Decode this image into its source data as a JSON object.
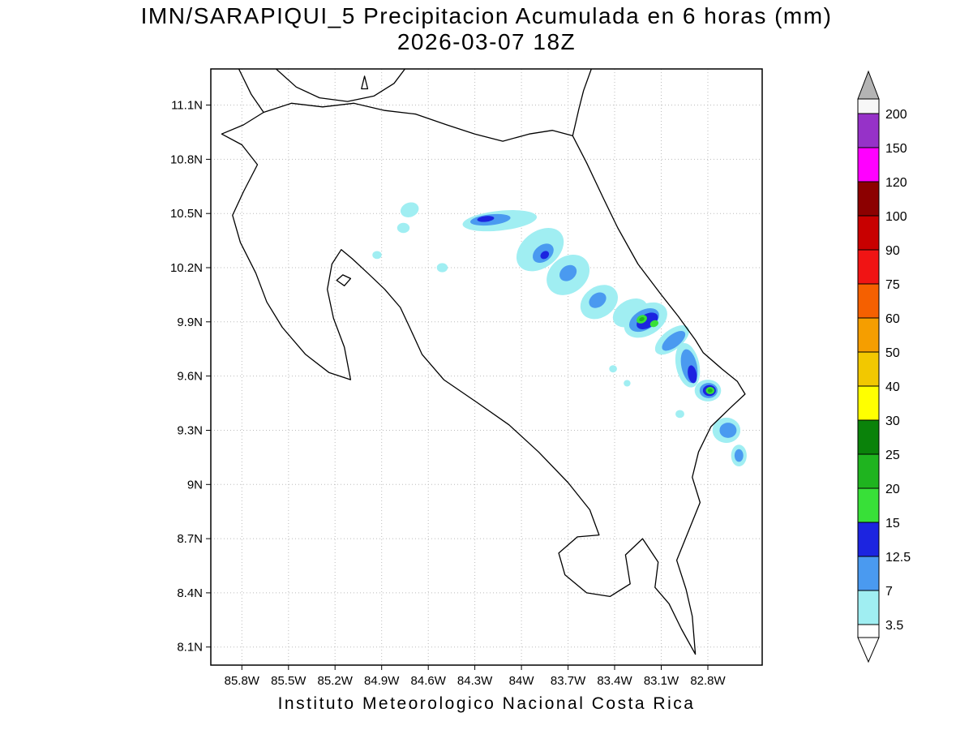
{
  "title": {
    "line1": "IMN/SARAPIQUI_5 Precipitacion Acumulada en 6 horas (mm)",
    "line2": "2026-03-07 18Z"
  },
  "footer": "Instituto Meteorologico Nacional Costa Rica",
  "chart_data": {
    "type": "heatmap",
    "title": "IMN/SARAPIQUI_5 Precipitacion Acumulada en 6 horas (mm)",
    "subtitle": "2026-03-07 18Z",
    "units": "mm",
    "region": "Costa Rica",
    "grid": "dotted",
    "lon_range_w": [
      86.0,
      82.45
    ],
    "lat_range": [
      8.0,
      11.3
    ],
    "lat_ticks": [
      {
        "v": 11.1,
        "label": "11.1N"
      },
      {
        "v": 10.8,
        "label": "10.8N"
      },
      {
        "v": 10.5,
        "label": "10.5N"
      },
      {
        "v": 10.2,
        "label": "10.2N"
      },
      {
        "v": 9.9,
        "label": "9.9N"
      },
      {
        "v": 9.6,
        "label": "9.6N"
      },
      {
        "v": 9.3,
        "label": "9.3N"
      },
      {
        "v": 9.0,
        "label": "9N"
      },
      {
        "v": 8.7,
        "label": "8.7N"
      },
      {
        "v": 8.4,
        "label": "8.4N"
      },
      {
        "v": 8.1,
        "label": "8.1N"
      }
    ],
    "lon_ticks": [
      {
        "v": 85.8,
        "label": "85.8W"
      },
      {
        "v": 85.5,
        "label": "85.5W"
      },
      {
        "v": 85.2,
        "label": "85.2W"
      },
      {
        "v": 84.9,
        "label": "84.9W"
      },
      {
        "v": 84.6,
        "label": "84.6W"
      },
      {
        "v": 84.3,
        "label": "84.3W"
      },
      {
        "v": 84.0,
        "label": "84W"
      },
      {
        "v": 83.7,
        "label": "83.7W"
      },
      {
        "v": 83.4,
        "label": "83.4W"
      },
      {
        "v": 83.1,
        "label": "83.1W"
      },
      {
        "v": 82.8,
        "label": "82.8W"
      }
    ],
    "colorbar": {
      "labels": [
        "200",
        "150",
        "120",
        "100",
        "90",
        "75",
        "60",
        "50",
        "40",
        "30",
        "25",
        "20",
        "15",
        "12.5",
        "7",
        "3.5"
      ],
      "cell_colors_top_to_bottom": [
        "#9632c8",
        "#ff00ff",
        "#8c0000",
        "#c80000",
        "#f01414",
        "#f56000",
        "#f59e00",
        "#f2c800",
        "#ffff00",
        "#0a820a",
        "#1fb41f",
        "#38e038",
        "#1c24e0",
        "#4a9af0",
        "#a0eef2"
      ],
      "above_max_color": "#f7f7f7",
      "top_arrow_color": "#b4b4b4",
      "below_min_color": "#ffffff"
    },
    "palette": {
      "3.5": "#a0eef2",
      "7": "#4a9af0",
      "12.5": "#1c24e0",
      "15": "#38e038",
      "20": "#1fb41f",
      "25": "#0a820a"
    },
    "blobs": [
      {
        "lon": 84.72,
        "lat": 10.52,
        "rx": 0.06,
        "ry": 0.04,
        "rot": -20,
        "level": "3.5"
      },
      {
        "lon": 84.76,
        "lat": 10.42,
        "rx": 0.04,
        "ry": 0.028,
        "rot": 0,
        "level": "3.5"
      },
      {
        "lon": 84.93,
        "lat": 10.27,
        "rx": 0.03,
        "ry": 0.022,
        "rot": 0,
        "level": "3.5"
      },
      {
        "lon": 84.51,
        "lat": 10.2,
        "rx": 0.035,
        "ry": 0.025,
        "rot": 0,
        "level": "3.5"
      },
      {
        "lon": 84.14,
        "lat": 10.46,
        "rx": 0.24,
        "ry": 0.055,
        "rot": -6,
        "level": "3.5"
      },
      {
        "lon": 83.88,
        "lat": 10.3,
        "rx": 0.17,
        "ry": 0.1,
        "rot": -38,
        "level": "3.5"
      },
      {
        "lon": 83.7,
        "lat": 10.16,
        "rx": 0.15,
        "ry": 0.1,
        "rot": -38,
        "level": "3.5"
      },
      {
        "lon": 83.5,
        "lat": 10.01,
        "rx": 0.13,
        "ry": 0.085,
        "rot": -35,
        "level": "3.5"
      },
      {
        "lon": 83.3,
        "lat": 9.95,
        "rx": 0.12,
        "ry": 0.07,
        "rot": -30,
        "level": "3.5"
      },
      {
        "lon": 83.2,
        "lat": 9.91,
        "rx": 0.15,
        "ry": 0.085,
        "rot": -30,
        "level": "3.5"
      },
      {
        "lon": 83.03,
        "lat": 9.8,
        "rx": 0.13,
        "ry": 0.055,
        "rot": -38,
        "level": "3.5"
      },
      {
        "lon": 82.93,
        "lat": 9.66,
        "rx": 0.075,
        "ry": 0.125,
        "rot": -12,
        "level": "3.5"
      },
      {
        "lon": 82.8,
        "lat": 9.52,
        "rx": 0.085,
        "ry": 0.06,
        "rot": 0,
        "level": "3.5"
      },
      {
        "lon": 82.68,
        "lat": 9.3,
        "rx": 0.09,
        "ry": 0.07,
        "rot": 0,
        "level": "3.5"
      },
      {
        "lon": 82.6,
        "lat": 9.16,
        "rx": 0.05,
        "ry": 0.06,
        "rot": 0,
        "level": "3.5"
      },
      {
        "lon": 83.41,
        "lat": 9.64,
        "rx": 0.025,
        "ry": 0.02,
        "rot": 0,
        "level": "3.5"
      },
      {
        "lon": 83.32,
        "lat": 9.56,
        "rx": 0.022,
        "ry": 0.018,
        "rot": 0,
        "level": "3.5"
      },
      {
        "lon": 82.98,
        "lat": 9.39,
        "rx": 0.028,
        "ry": 0.022,
        "rot": 0,
        "level": "3.5"
      },
      {
        "lon": 84.2,
        "lat": 10.465,
        "rx": 0.13,
        "ry": 0.03,
        "rot": -6,
        "level": "7"
      },
      {
        "lon": 83.86,
        "lat": 10.28,
        "rx": 0.075,
        "ry": 0.045,
        "rot": -38,
        "level": "7"
      },
      {
        "lon": 83.7,
        "lat": 10.17,
        "rx": 0.06,
        "ry": 0.04,
        "rot": -38,
        "level": "7"
      },
      {
        "lon": 83.51,
        "lat": 10.02,
        "rx": 0.06,
        "ry": 0.038,
        "rot": -35,
        "level": "7"
      },
      {
        "lon": 83.21,
        "lat": 9.91,
        "rx": 0.105,
        "ry": 0.055,
        "rot": -30,
        "level": "7"
      },
      {
        "lon": 83.02,
        "lat": 9.795,
        "rx": 0.09,
        "ry": 0.035,
        "rot": -38,
        "level": "7"
      },
      {
        "lon": 82.92,
        "lat": 9.655,
        "rx": 0.05,
        "ry": 0.095,
        "rot": -12,
        "level": "7"
      },
      {
        "lon": 82.795,
        "lat": 9.52,
        "rx": 0.058,
        "ry": 0.042,
        "rot": 0,
        "level": "7"
      },
      {
        "lon": 82.67,
        "lat": 9.3,
        "rx": 0.055,
        "ry": 0.042,
        "rot": 0,
        "level": "7"
      },
      {
        "lon": 82.6,
        "lat": 9.16,
        "rx": 0.028,
        "ry": 0.035,
        "rot": 0,
        "level": "7"
      },
      {
        "lon": 84.23,
        "lat": 10.47,
        "rx": 0.055,
        "ry": 0.016,
        "rot": -6,
        "level": "12.5"
      },
      {
        "lon": 83.85,
        "lat": 10.27,
        "rx": 0.03,
        "ry": 0.02,
        "rot": -38,
        "level": "12.5"
      },
      {
        "lon": 83.19,
        "lat": 9.905,
        "rx": 0.075,
        "ry": 0.038,
        "rot": -30,
        "level": "12.5"
      },
      {
        "lon": 82.9,
        "lat": 9.61,
        "rx": 0.028,
        "ry": 0.05,
        "rot": -10,
        "level": "12.5"
      },
      {
        "lon": 82.79,
        "lat": 9.52,
        "rx": 0.042,
        "ry": 0.03,
        "rot": 0,
        "level": "12.5"
      },
      {
        "lon": 83.225,
        "lat": 9.915,
        "rx": 0.035,
        "ry": 0.022,
        "rot": -25,
        "level": "15"
      },
      {
        "lon": 83.145,
        "lat": 9.89,
        "rx": 0.028,
        "ry": 0.018,
        "rot": -25,
        "level": "15"
      },
      {
        "lon": 83.225,
        "lat": 9.915,
        "rx": 0.018,
        "ry": 0.011,
        "rot": -25,
        "level": "20"
      },
      {
        "lon": 82.785,
        "lat": 9.52,
        "rx": 0.028,
        "ry": 0.02,
        "rot": 0,
        "level": "15"
      },
      {
        "lon": 82.785,
        "lat": 9.52,
        "rx": 0.015,
        "ry": 0.011,
        "rot": 0,
        "level": "20"
      }
    ],
    "coastlines": [
      [
        [
          85.82,
          11.3
        ],
        [
          85.74,
          11.16
        ],
        [
          85.66,
          11.06
        ]
      ],
      [
        [
          85.66,
          11.06
        ],
        [
          85.48,
          11.11
        ],
        [
          85.28,
          11.09
        ],
        [
          85.08,
          11.11
        ],
        [
          84.88,
          11.07
        ],
        [
          84.68,
          11.05
        ],
        [
          84.48,
          10.99
        ],
        [
          84.3,
          10.94
        ],
        [
          84.12,
          10.9
        ],
        [
          83.95,
          10.94
        ],
        [
          83.8,
          10.96
        ],
        [
          83.67,
          10.93
        ]
      ],
      [
        [
          83.67,
          10.93
        ],
        [
          83.63,
          11.08
        ],
        [
          83.6,
          11.18
        ],
        [
          83.55,
          11.3
        ]
      ],
      [
        [
          83.67,
          10.93
        ],
        [
          83.58,
          10.78
        ],
        [
          83.47,
          10.58
        ],
        [
          83.38,
          10.42
        ],
        [
          83.25,
          10.22
        ],
        [
          83.1,
          10.05
        ],
        [
          82.99,
          9.93
        ],
        [
          82.88,
          9.8
        ],
        [
          82.83,
          9.73
        ],
        [
          82.71,
          9.64
        ],
        [
          82.61,
          9.57
        ],
        [
          82.56,
          9.5
        ],
        [
          82.66,
          9.42
        ],
        [
          82.78,
          9.32
        ],
        [
          82.86,
          9.18
        ],
        [
          82.9,
          9.04
        ],
        [
          82.85,
          8.9
        ],
        [
          82.93,
          8.73
        ],
        [
          83.0,
          8.58
        ],
        [
          82.94,
          8.42
        ],
        [
          82.9,
          8.27
        ],
        [
          82.88,
          8.06
        ],
        [
          82.97,
          8.2
        ],
        [
          83.05,
          8.34
        ],
        [
          83.14,
          8.43
        ],
        [
          83.12,
          8.57
        ],
        [
          83.22,
          8.7
        ],
        [
          83.33,
          8.61
        ],
        [
          83.3,
          8.45
        ],
        [
          83.43,
          8.38
        ],
        [
          83.58,
          8.4
        ],
        [
          83.72,
          8.5
        ],
        [
          83.76,
          8.62
        ],
        [
          83.64,
          8.71
        ],
        [
          83.5,
          8.72
        ],
        [
          83.56,
          8.86
        ],
        [
          83.7,
          9.01
        ],
        [
          83.89,
          9.18
        ],
        [
          84.08,
          9.33
        ],
        [
          84.28,
          9.45
        ],
        [
          84.5,
          9.58
        ],
        [
          84.64,
          9.72
        ],
        [
          84.72,
          9.87
        ],
        [
          84.78,
          9.98
        ],
        [
          84.88,
          10.08
        ],
        [
          84.99,
          10.17
        ],
        [
          85.09,
          10.25
        ],
        [
          85.16,
          10.3
        ],
        [
          85.22,
          10.22
        ],
        [
          85.25,
          10.08
        ],
        [
          85.21,
          9.92
        ],
        [
          85.14,
          9.76
        ],
        [
          85.1,
          9.58
        ],
        [
          85.24,
          9.62
        ],
        [
          85.39,
          9.72
        ],
        [
          85.54,
          9.87
        ],
        [
          85.64,
          10.01
        ],
        [
          85.71,
          10.17
        ],
        [
          85.81,
          10.34
        ],
        [
          85.86,
          10.49
        ],
        [
          85.79,
          10.62
        ],
        [
          85.7,
          10.77
        ],
        [
          85.8,
          10.88
        ],
        [
          85.93,
          10.94
        ],
        [
          85.79,
          10.99
        ],
        [
          85.66,
          11.06
        ]
      ],
      [
        [
          85.58,
          11.3
        ],
        [
          85.45,
          11.2
        ],
        [
          85.3,
          11.14
        ],
        [
          85.12,
          11.12
        ],
        [
          84.95,
          11.15
        ],
        [
          84.82,
          11.22
        ],
        [
          84.75,
          11.3
        ]
      ],
      [
        [
          85.03,
          11.19
        ],
        [
          84.99,
          11.19
        ],
        [
          85.01,
          11.26
        ],
        [
          85.03,
          11.19
        ]
      ],
      [
        [
          85.19,
          10.13
        ],
        [
          85.15,
          10.16
        ],
        [
          85.1,
          10.14
        ],
        [
          85.14,
          10.1
        ],
        [
          85.19,
          10.13
        ]
      ]
    ]
  }
}
